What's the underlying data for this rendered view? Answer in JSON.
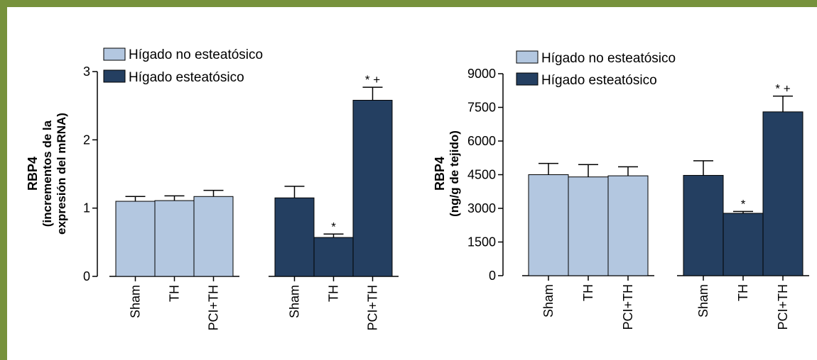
{
  "colors": {
    "frame": "#77923c",
    "non_steatotic": "#b3c7e0",
    "steatotic": "#243f61"
  },
  "chart_data": [
    {
      "type": "bar",
      "ylabel_lines": [
        "RBP4",
        "(incrementos de la",
        "expresión del mRNA)"
      ],
      "ylim": [
        0,
        3
      ],
      "yticks": [
        0,
        1,
        2,
        3
      ],
      "legend": [
        {
          "name": "Hígado no esteatósico",
          "color": "#b3c7e0"
        },
        {
          "name": "Hígado esteatósico",
          "color": "#243f61"
        }
      ],
      "groups": [
        {
          "series": "Hígado no esteatósico",
          "bars": [
            {
              "category": "Sham",
              "value": 1.1,
              "error": 0.07,
              "annotation": ""
            },
            {
              "category": "TH",
              "value": 1.11,
              "error": 0.07,
              "annotation": ""
            },
            {
              "category": "PCI+TH",
              "value": 1.17,
              "error": 0.09,
              "annotation": ""
            }
          ]
        },
        {
          "series": "Hígado esteatósico",
          "bars": [
            {
              "category": "Sham",
              "value": 1.15,
              "error": 0.17,
              "annotation": ""
            },
            {
              "category": "TH",
              "value": 0.57,
              "error": 0.05,
              "annotation": "*"
            },
            {
              "category": "PCI+TH",
              "value": 2.58,
              "error": 0.19,
              "annotation": "* +"
            }
          ]
        }
      ]
    },
    {
      "type": "bar",
      "ylabel_lines": [
        "RBP4",
        "(ng/g de tejido)"
      ],
      "ylim": [
        0,
        9000
      ],
      "yticks": [
        0,
        1500,
        3000,
        4500,
        6000,
        7500,
        9000
      ],
      "legend": [
        {
          "name": "Hígado no esteatósico",
          "color": "#b3c7e0"
        },
        {
          "name": "Hígado esteatósico",
          "color": "#243f61"
        }
      ],
      "groups": [
        {
          "series": "Hígado no esteatósico",
          "bars": [
            {
              "category": "Sham",
              "value": 4500,
              "error": 500,
              "annotation": ""
            },
            {
              "category": "TH",
              "value": 4400,
              "error": 550,
              "annotation": ""
            },
            {
              "category": "PCI+TH",
              "value": 4450,
              "error": 400,
              "annotation": ""
            }
          ]
        },
        {
          "series": "Hígado esteatósico",
          "bars": [
            {
              "category": "Sham",
              "value": 4470,
              "error": 650,
              "annotation": ""
            },
            {
              "category": "TH",
              "value": 2780,
              "error": 80,
              "annotation": "*"
            },
            {
              "category": "PCI+TH",
              "value": 7300,
              "error": 700,
              "annotation": "* +"
            }
          ]
        }
      ]
    }
  ]
}
